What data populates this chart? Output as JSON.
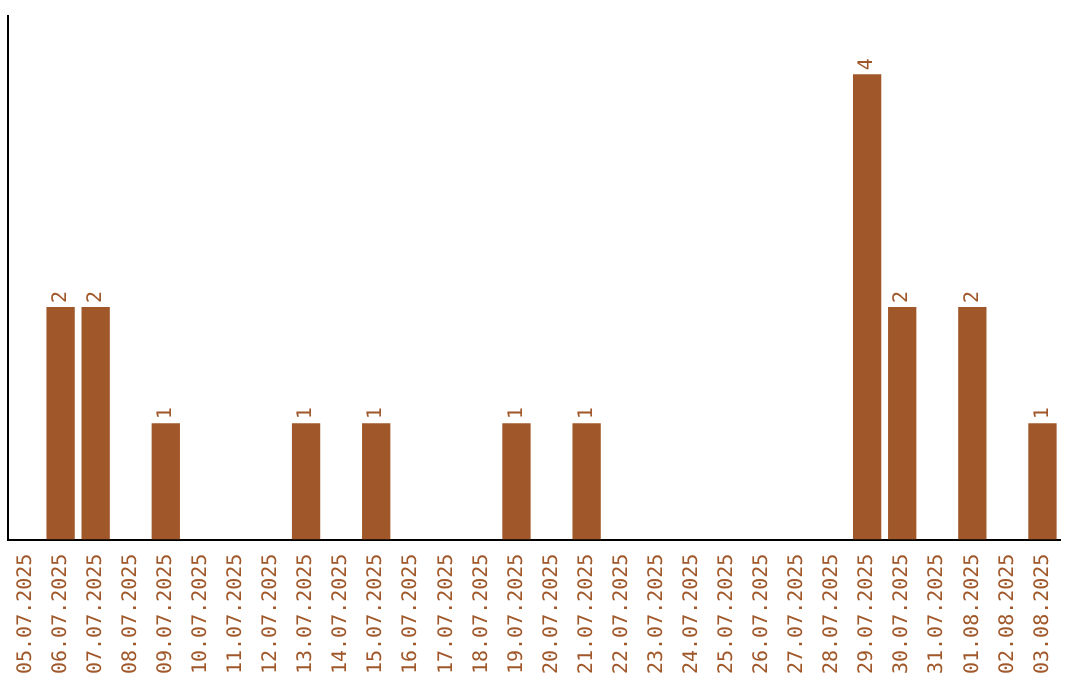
{
  "chart_data": {
    "type": "bar",
    "categories": [
      "05.07.2025",
      "06.07.2025",
      "07.07.2025",
      "08.07.2025",
      "09.07.2025",
      "10.07.2025",
      "11.07.2025",
      "12.07.2025",
      "13.07.2025",
      "14.07.2025",
      "15.07.2025",
      "16.07.2025",
      "17.07.2025",
      "18.07.2025",
      "19.07.2025",
      "20.07.2025",
      "21.07.2025",
      "22.07.2025",
      "23.07.2025",
      "24.07.2025",
      "25.07.2025",
      "26.07.2025",
      "27.07.2025",
      "28.07.2025",
      "29.07.2025",
      "30.07.2025",
      "31.07.2025",
      "01.08.2025",
      "02.08.2025",
      "03.08.2025"
    ],
    "values": [
      0,
      2,
      2,
      0,
      1,
      0,
      0,
      0,
      1,
      0,
      1,
      0,
      0,
      0,
      1,
      0,
      1,
      0,
      0,
      0,
      0,
      0,
      0,
      0,
      4,
      2,
      0,
      2,
      0,
      1
    ],
    "value_labels": [
      null,
      "2",
      "2",
      null,
      "1",
      null,
      null,
      null,
      "1",
      null,
      "1",
      null,
      null,
      null,
      "1",
      null,
      "1",
      null,
      null,
      null,
      null,
      null,
      null,
      null,
      "4",
      "2",
      null,
      "2",
      null,
      "1"
    ],
    "color": "#a0582a",
    "tick_labels": "x",
    "grid": false,
    "legend": false
  }
}
